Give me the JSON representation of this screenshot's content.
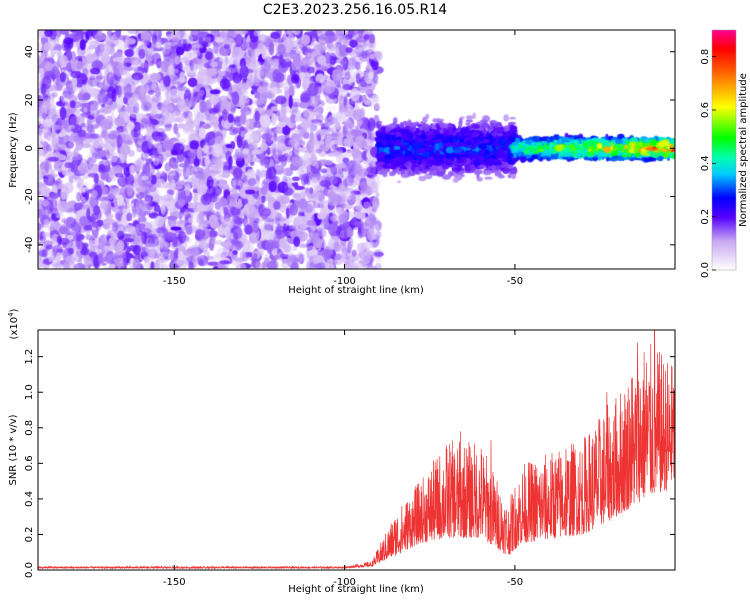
{
  "title": "C2E3.2023.256.16.05.R14",
  "colors": {
    "snr_line": "#ee3333",
    "axis": "#000000"
  },
  "chart_data": [
    {
      "type": "heatmap",
      "xlabel": "Height of straight line (km)",
      "ylabel": "Frequency (Hz)",
      "xlim": [
        -190,
        -3
      ],
      "ylim": [
        -50,
        49
      ],
      "x_ticks": [
        -150,
        -100,
        -50
      ],
      "y_ticks": [
        -40,
        -20,
        0,
        20,
        40
      ],
      "colorbar": {
        "label": "Normalized spectral amplitude",
        "range": [
          0,
          0.9
        ],
        "ticks": [
          0.0,
          0.2,
          0.4,
          0.6,
          0.8
        ],
        "colormap": "rainbow-white"
      },
      "regions": [
        {
          "x_range": [
            -190,
            -90
          ],
          "freq_range": [
            -50,
            49
          ],
          "amplitude": [
            0.05,
            0.2
          ],
          "pattern": "broadband noise"
        },
        {
          "x_range": [
            -90,
            -50
          ],
          "freq_center": 0,
          "freq_spread": 8,
          "amplitude": [
            0.1,
            0.35
          ],
          "pattern": "narrow band"
        },
        {
          "x_range": [
            -50,
            -3
          ],
          "freq_center": 0,
          "freq_spread": 3,
          "amplitude": [
            0.2,
            0.9
          ],
          "pattern": "narrow band peak"
        }
      ]
    },
    {
      "type": "line",
      "xlabel": "Height of straight line (km)",
      "ylabel": "SNR (10 * v/v)",
      "y_multiplier": "(x10",
      "y_multiplier_exp": "4",
      "y_multiplier_close": ")",
      "xlim": [
        -190,
        -3
      ],
      "ylim": [
        0,
        1.35
      ],
      "x_ticks": [
        -150,
        -100,
        -50
      ],
      "y_ticks": [
        0.0,
        0.2,
        0.4,
        0.6,
        0.8,
        1.0,
        1.2
      ],
      "envelope": [
        {
          "x": -190,
          "base": 0.01,
          "amp": 0.01
        },
        {
          "x": -100,
          "base": 0.01,
          "amp": 0.01
        },
        {
          "x": -92,
          "base": 0.02,
          "amp": 0.03
        },
        {
          "x": -85,
          "base": 0.08,
          "amp": 0.25
        },
        {
          "x": -78,
          "base": 0.15,
          "amp": 0.35
        },
        {
          "x": -70,
          "base": 0.18,
          "amp": 0.55
        },
        {
          "x": -60,
          "base": 0.18,
          "amp": 0.55
        },
        {
          "x": -52,
          "base": 0.08,
          "amp": 0.3
        },
        {
          "x": -48,
          "base": 0.15,
          "amp": 0.45
        },
        {
          "x": -30,
          "base": 0.2,
          "amp": 0.55
        },
        {
          "x": -20,
          "base": 0.3,
          "amp": 0.7
        },
        {
          "x": -12,
          "base": 0.4,
          "amp": 0.9
        },
        {
          "x": -5,
          "base": 0.45,
          "amp": 0.75
        },
        {
          "x": -3,
          "base": 0.5,
          "amp": 0.65
        }
      ],
      "peaks": [
        {
          "x": -66,
          "y": 0.78
        },
        {
          "x": -57,
          "y": 0.73
        },
        {
          "x": -35,
          "y": 0.68
        },
        {
          "x": -23,
          "y": 1.0
        },
        {
          "x": -14,
          "y": 1.28
        },
        {
          "x": -9,
          "y": 1.35
        },
        {
          "x": -4,
          "y": 1.15
        }
      ]
    }
  ]
}
